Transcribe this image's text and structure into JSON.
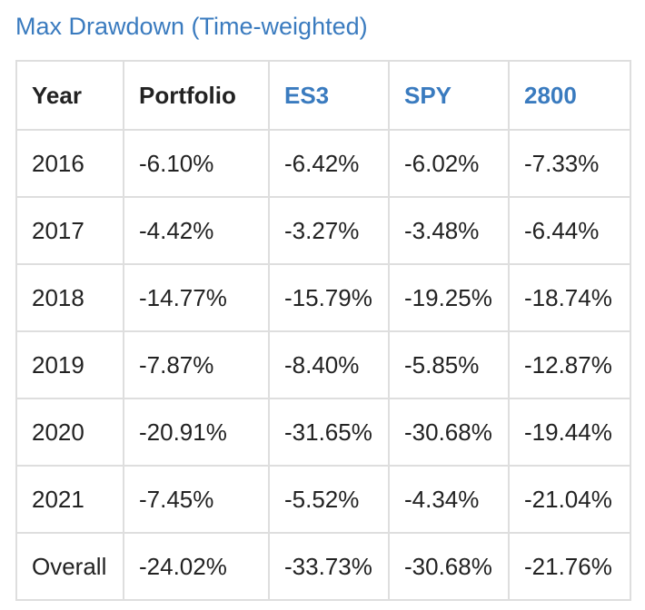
{
  "title": "Max Drawdown (Time-weighted)",
  "colors": {
    "link": "#3a7bbf",
    "text": "#222222",
    "border": "#dedede"
  },
  "table": {
    "headers": [
      "Year",
      "Portfolio",
      "ES3",
      "SPY",
      "2800"
    ],
    "rows": [
      [
        "2016",
        "-6.10%",
        "-6.42%",
        "-6.02%",
        "-7.33%"
      ],
      [
        "2017",
        "-4.42%",
        "-3.27%",
        "-3.48%",
        "-6.44%"
      ],
      [
        "2018",
        "-14.77%",
        "-15.79%",
        "-19.25%",
        "-18.74%"
      ],
      [
        "2019",
        "-7.87%",
        "-8.40%",
        "-5.85%",
        "-12.87%"
      ],
      [
        "2020",
        "-20.91%",
        "-31.65%",
        "-30.68%",
        "-19.44%"
      ],
      [
        "2021",
        "-7.45%",
        "-5.52%",
        "-4.34%",
        "-21.04%"
      ],
      [
        "Overall",
        "-24.02%",
        "-33.73%",
        "-30.68%",
        "-21.76%"
      ]
    ]
  }
}
